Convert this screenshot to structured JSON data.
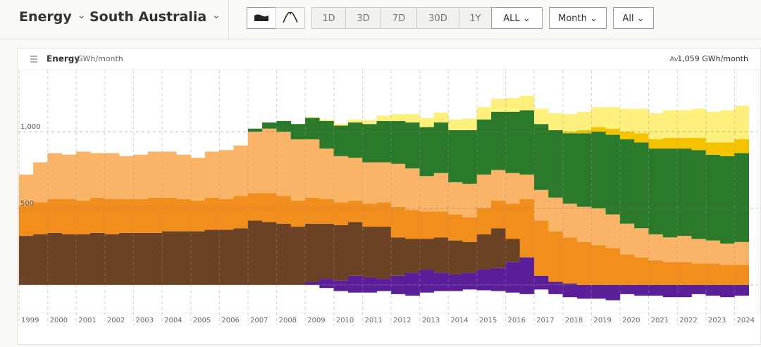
{
  "header": {
    "metric": "Energy",
    "region": "South Australia"
  },
  "toolbar": {
    "ranges": [
      "1D",
      "3D",
      "7D",
      "30D",
      "1Y",
      "ALL"
    ],
    "interval": "Month",
    "filter": "All"
  },
  "chart_data": {
    "type": "stacked-bar",
    "title": "Energy",
    "unit": "GWh/month",
    "summary_label": "Av.",
    "summary_value": "1,059 GWh/month",
    "x": [
      1999.25,
      1999.75,
      2000.25,
      2000.75,
      2001.25,
      2001.75,
      2002.25,
      2002.75,
      2003.25,
      2003.75,
      2004.25,
      2004.75,
      2005.25,
      2005.75,
      2006.25,
      2006.75,
      2007.25,
      2007.75,
      2008.25,
      2008.75,
      2009.25,
      2009.75,
      2010.25,
      2010.75,
      2011.25,
      2011.75,
      2012.25,
      2012.75,
      2013.25,
      2013.75,
      2014.25,
      2014.75,
      2015.25,
      2015.75,
      2016.25,
      2016.75,
      2017.25,
      2017.75,
      2018.25,
      2018.75,
      2019.25,
      2019.75,
      2020.25,
      2020.75,
      2021.25,
      2021.75,
      2022.25,
      2022.75,
      2023.25,
      2023.75,
      2024.25
    ],
    "xlim": [
      1998.95,
      2024.8
    ],
    "xticks": [
      1999,
      2000,
      2001,
      2002,
      2003,
      2004,
      2005,
      2006,
      2007,
      2008,
      2009,
      2010,
      2011,
      2012,
      2013,
      2014,
      2015,
      2016,
      2017,
      2018,
      2019,
      2020,
      2021,
      2022,
      2023,
      2024
    ],
    "ylim": [
      -180,
      1400
    ],
    "yticks": [
      0,
      500,
      {
        "value": 1000,
        "label": "1,000"
      }
    ],
    "grid": true,
    "series": [
      {
        "color": "#5b1f9a",
        "values": [
          0,
          0,
          0,
          0,
          0,
          0,
          0,
          0,
          0,
          0,
          0,
          0,
          0,
          0,
          0,
          0,
          0,
          0,
          0,
          0,
          20,
          40,
          30,
          60,
          50,
          40,
          60,
          80,
          100,
          80,
          70,
          80,
          100,
          110,
          150,
          180,
          60,
          20,
          10,
          0,
          0,
          0,
          0,
          0,
          0,
          0,
          0,
          0,
          0,
          0,
          0
        ]
      },
      {
        "color": "#5b1f9a",
        "values": [
          0,
          0,
          0,
          0,
          0,
          0,
          0,
          0,
          0,
          0,
          0,
          0,
          0,
          0,
          0,
          0,
          0,
          0,
          0,
          0,
          0,
          -20,
          -40,
          -50,
          -50,
          -40,
          -60,
          -70,
          -50,
          -40,
          -40,
          -30,
          -35,
          -40,
          -50,
          -60,
          -30,
          -60,
          -80,
          -90,
          -90,
          -100,
          -60,
          -70,
          -70,
          -80,
          -80,
          -60,
          -70,
          -80,
          -70
        ]
      },
      {
        "color": "#6b4224",
        "values": [
          320,
          330,
          340,
          330,
          330,
          340,
          330,
          340,
          340,
          340,
          350,
          350,
          350,
          360,
          360,
          370,
          420,
          410,
          400,
          380,
          380,
          360,
          360,
          350,
          330,
          340,
          250,
          220,
          200,
          230,
          220,
          200,
          230,
          260,
          150,
          0,
          0,
          0,
          0,
          0,
          0,
          0,
          0,
          0,
          0,
          0,
          0,
          0,
          0,
          0,
          0
        ]
      },
      {
        "color": "#f28e1c",
        "values": [
          200,
          210,
          220,
          230,
          220,
          230,
          230,
          220,
          220,
          230,
          220,
          210,
          200,
          210,
          200,
          210,
          180,
          190,
          180,
          170,
          170,
          160,
          150,
          140,
          150,
          160,
          200,
          190,
          180,
          170,
          170,
          160,
          170,
          180,
          230,
          380,
          360,
          330,
          300,
          280,
          260,
          240,
          200,
          180,
          160,
          150,
          150,
          140,
          140,
          130,
          130
        ]
      },
      {
        "color": "#f9b467",
        "values": [
          200,
          260,
          300,
          290,
          320,
          290,
          300,
          280,
          290,
          300,
          300,
          290,
          280,
          300,
          320,
          330,
          400,
          420,
          420,
          400,
          380,
          330,
          300,
          280,
          270,
          260,
          280,
          270,
          230,
          250,
          210,
          220,
          220,
          200,
          200,
          160,
          200,
          220,
          220,
          230,
          240,
          220,
          200,
          190,
          170,
          160,
          170,
          160,
          150,
          140,
          150
        ]
      },
      {
        "color": "#2b7a2b",
        "values": [
          0,
          0,
          0,
          0,
          0,
          0,
          0,
          0,
          0,
          0,
          0,
          0,
          0,
          0,
          0,
          0,
          20,
          40,
          70,
          100,
          140,
          180,
          200,
          230,
          250,
          270,
          280,
          300,
          320,
          330,
          340,
          350,
          360,
          380,
          400,
          420,
          430,
          440,
          460,
          480,
          500,
          520,
          550,
          560,
          560,
          580,
          570,
          580,
          560,
          570,
          580
        ]
      },
      {
        "color": "#f5c400",
        "values": [
          0,
          0,
          0,
          0,
          0,
          0,
          0,
          0,
          0,
          0,
          0,
          0,
          0,
          0,
          0,
          0,
          0,
          0,
          0,
          0,
          0,
          0,
          0,
          0,
          0,
          0,
          0,
          0,
          0,
          0,
          0,
          0,
          0,
          0,
          0,
          0,
          0,
          0,
          10,
          20,
          30,
          40,
          50,
          60,
          60,
          70,
          70,
          80,
          80,
          90,
          90
        ]
      },
      {
        "color": "#fdf07c",
        "values": [
          0,
          0,
          0,
          0,
          0,
          0,
          0,
          0,
          0,
          0,
          0,
          0,
          0,
          0,
          0,
          0,
          0,
          0,
          0,
          0,
          5,
          8,
          12,
          18,
          25,
          35,
          45,
          55,
          60,
          65,
          70,
          75,
          80,
          85,
          90,
          95,
          100,
          110,
          115,
          120,
          130,
          140,
          150,
          160,
          170,
          180,
          180,
          190,
          200,
          210,
          220
        ]
      }
    ]
  }
}
